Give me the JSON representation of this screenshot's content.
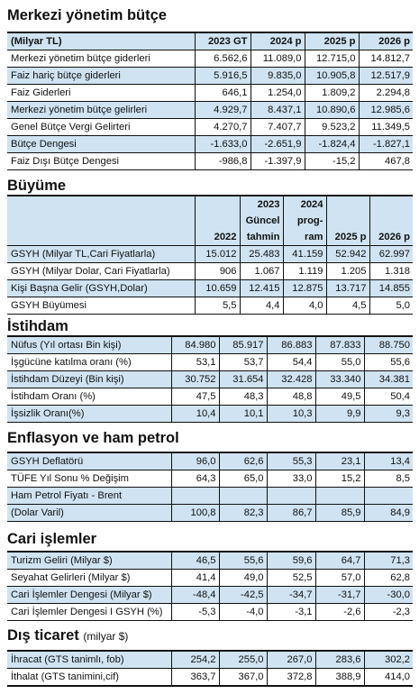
{
  "butce": {
    "title": "Merkezi yönetim bütçe",
    "header": [
      "(Milyar TL)",
      "2023 GT",
      "2024 p",
      "2025 p",
      "2026 p"
    ],
    "rows": [
      [
        "Merkezi yönetim bütçe giderleri",
        "6.562,6",
        "11.089,0",
        "12.715,0",
        "14.812,7"
      ],
      [
        "Faiz hariç bütçe giderleri",
        "5.916,5",
        "9.835,0",
        "10.905,8",
        "12.517,9"
      ],
      [
        "Faiz Giderleri",
        "646,1",
        "1.254,0",
        "1.809,2",
        "2.294,8"
      ],
      [
        "Merkezi yönetim bütçe gelirleri",
        "4.929,7",
        "8.437,1",
        "10.890,6",
        "12.985,6"
      ],
      [
        "Genel Bütçe Vergi Gelirteri",
        "4.270,7",
        "7.407,7",
        "9.523,2",
        "11.349,5"
      ],
      [
        "Bütçe Dengesi",
        "-1.633,0",
        "-2.651,9",
        "-1.824,4",
        "-1.827,1"
      ],
      [
        "Faiz Dışı Bütçe Dengesi",
        "-986,8",
        "-1.397,9",
        "-15,2",
        "467,8"
      ]
    ]
  },
  "buyume": {
    "title": "Büyüme",
    "header": [
      "",
      "2022",
      "2023\nGüncel\ntahmin",
      "2024\nprog-\nram",
      "2025 p",
      "2026 p"
    ],
    "rows": [
      [
        "GSYH (Milyar TL,Cari Fiyatlarla)",
        "15.012",
        "25.483",
        "41.159",
        "52.942",
        "62.997"
      ],
      [
        "GSYH (Milyar Dolar, Cari Fiyatlarla)",
        "906",
        "1.067",
        "1.119",
        "1.205",
        "1.318"
      ],
      [
        "Kişi Başna Gelir (GSYH,Dolar)",
        "10.659",
        "12.415",
        "12.875",
        "13.717",
        "14.855"
      ],
      [
        "GSYH Büyümesi",
        "5,5",
        "4,4",
        "4,0",
        "4,5",
        "5,0"
      ]
    ]
  },
  "istihdam": {
    "title": "İstihdam",
    "rows": [
      [
        "Nüfus (Yıl ortası Bin kişi)",
        "84.980",
        "85.917",
        "86.883",
        "87.833",
        "88.750"
      ],
      [
        "İşgücüne katılma oranı (%)",
        "53,1",
        "53,7",
        "54,4",
        "55,0",
        "55,6"
      ],
      [
        "İstihdam Düzeyi (Bin kişi)",
        "30.752",
        "31.654",
        "32.428",
        "33.340",
        "34.381"
      ],
      [
        "İstihdam Oranı (%)",
        "47,5",
        "48,3",
        "48,8",
        "49,5",
        "50,4"
      ],
      [
        "İşsizlik Oranı(%)",
        "10,4",
        "10,1",
        "10,3",
        "9,9",
        "9,3"
      ]
    ]
  },
  "enflasyon": {
    "title": "Enflasyon ve ham petrol",
    "rows": [
      [
        "GSYH Deflatörü",
        "96,0",
        "62,6",
        "55,3",
        "23,1",
        "13,4"
      ],
      [
        "TÜFE Yıl Sonu % Değişim",
        "64,3",
        "65,0",
        "33,0",
        "15,2",
        "8,5"
      ],
      [
        "Ham Petrol Fiyatı - Brent",
        "",
        "",
        "",
        "",
        ""
      ],
      [
        "(Dolar Varil)",
        "100,8",
        "82,3",
        "86,7",
        "85,9",
        "84,9"
      ]
    ]
  },
  "cari": {
    "title": "Cari işlemler",
    "rows": [
      [
        "Turizm Geliri (Milyar $)",
        "46,5",
        "55,6",
        "59,6",
        "64,7",
        "71,3"
      ],
      [
        "Seyahat Gelirleri (Milyar $)",
        "41,4",
        "49,0",
        "52,5",
        "57,0",
        "62,8"
      ],
      [
        "Cari İşlemler Dengesi (Milyar $)",
        "-48,4",
        "-42,5",
        "-34,7",
        "-31,7",
        "-30,0"
      ],
      [
        "Cari İşlemler Dengesi I GSYH (%)",
        "-5,3",
        "-4,0",
        "-3,1",
        "-2,6",
        "-2,3"
      ]
    ]
  },
  "dis": {
    "title": "Dış ticaret",
    "unit": "(milyar $)",
    "rows": [
      [
        "İhracat (GTS tanimlı, fob)",
        "254,2",
        "255,0",
        "267,0",
        "283,6",
        "302,2"
      ],
      [
        "İthalat (GTS tanimini,cif)",
        "363,7",
        "367,0",
        "372,8",
        "388,9",
        "414,0"
      ]
    ]
  }
}
